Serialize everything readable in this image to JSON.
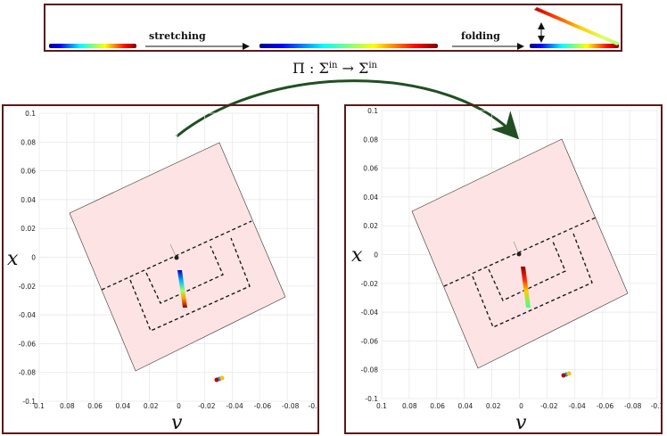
{
  "top": {
    "step1_label": "stretching",
    "step2_label": "folding"
  },
  "map_label": {
    "main": "Π : Σ",
    "sup1": "in",
    "arrow": " → Σ",
    "sup2": "in"
  },
  "colors": {
    "frame": "#5a1a1a",
    "region_fill": "#fde3e3",
    "arc": "#1f4f22",
    "grid": "#e6e6e6"
  },
  "plots": [
    {
      "id": "left",
      "xlabel": "v",
      "ylabel": "x",
      "x_ticks": [
        "0.1",
        "0.08",
        "0.06",
        "0.04",
        "0.02",
        "0",
        "-0.02",
        "-0.04",
        "-0.06",
        "-0.08",
        "-0.1"
      ],
      "y_ticks": [
        "0.1",
        "0.08",
        "0.06",
        "0.04",
        "0.02",
        "0",
        "-0.02",
        "-0.04",
        "-0.06",
        "-0.08",
        "-0.1"
      ],
      "xlim": [
        0.1,
        -0.1
      ],
      "ylim": [
        -0.1,
        0.1
      ],
      "strip": {
        "from": [
          0.0,
          -0.01
        ],
        "to": [
          -0.006,
          -0.036
        ],
        "top_color": "blue"
      }
    },
    {
      "id": "right",
      "xlabel": "v",
      "ylabel": "x",
      "x_ticks": [
        "0.1",
        "0.08",
        "0.06",
        "0.04",
        "0.02",
        "0",
        "-0.02",
        "-0.04",
        "-0.06",
        "-0.08",
        "-0.1"
      ],
      "y_ticks": [
        "0.1",
        "0.08",
        "0.06",
        "0.04",
        "0.02",
        "0",
        "-0.02",
        "-0.04",
        "-0.06",
        "-0.08",
        "-0.1"
      ],
      "xlim": [
        0.1,
        -0.1
      ],
      "ylim": [
        -0.1,
        0.1
      ],
      "strip": {
        "from": [
          -0.002,
          -0.01
        ],
        "to": [
          -0.007,
          -0.037
        ],
        "top_color": "red"
      }
    }
  ]
}
